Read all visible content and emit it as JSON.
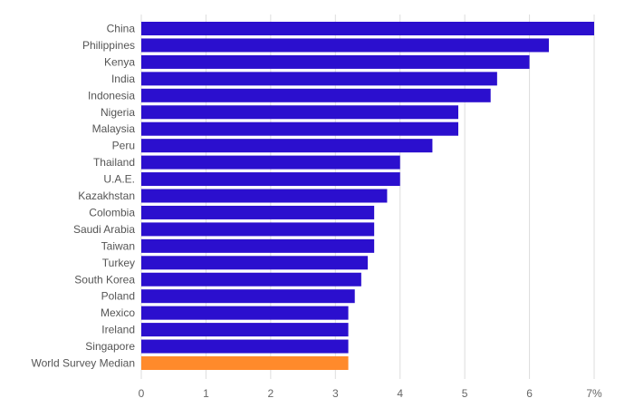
{
  "chart_data": {
    "type": "bar",
    "orientation": "horizontal",
    "categories": [
      "China",
      "Philippines",
      "Kenya",
      "India",
      "Indonesia",
      "Nigeria",
      "Malaysia",
      "Peru",
      "Thailand",
      "U.A.E.",
      "Kazakhstan",
      "Colombia",
      "Saudi Arabia",
      "Taiwan",
      "Turkey",
      "South Korea",
      "Poland",
      "Mexico",
      "Ireland",
      "Singapore",
      "World Survey Median"
    ],
    "values": [
      7.0,
      6.3,
      6.0,
      5.5,
      5.4,
      4.9,
      4.9,
      4.5,
      4.0,
      4.0,
      3.8,
      3.6,
      3.6,
      3.6,
      3.5,
      3.4,
      3.3,
      3.2,
      3.2,
      3.2,
      3.2
    ],
    "highlight_category": "World Survey Median",
    "xlim": [
      0,
      7
    ],
    "x_ticks": [
      {
        "value": 0,
        "label": "0"
      },
      {
        "value": 1,
        "label": "1"
      },
      {
        "value": 2,
        "label": "2"
      },
      {
        "value": 3,
        "label": "3"
      },
      {
        "value": 4,
        "label": "4"
      },
      {
        "value": 5,
        "label": "5"
      },
      {
        "value": 6,
        "label": "6"
      },
      {
        "value": 7,
        "label": "7%"
      }
    ],
    "grid": true,
    "title": "",
    "xlabel": "",
    "ylabel": "",
    "colors": {
      "bar": "#2b0fce",
      "highlight": "#ff8a2b",
      "grid": "#dddddd"
    }
  }
}
